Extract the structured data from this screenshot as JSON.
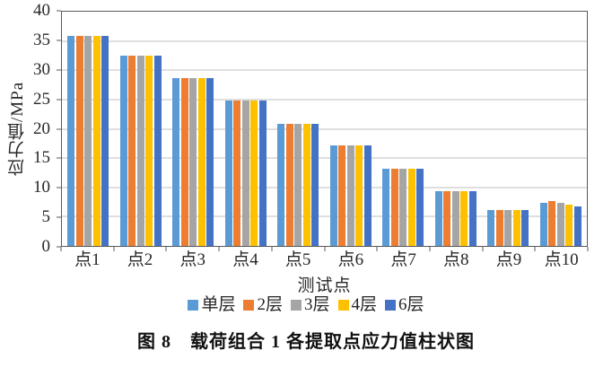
{
  "chart_data": {
    "type": "bar",
    "title": "",
    "xlabel": "测试点",
    "ylabel": "应力值/MPa",
    "ylim": [
      0,
      40
    ],
    "yticks": [
      0,
      5,
      10,
      15,
      20,
      25,
      30,
      35,
      40
    ],
    "grid": true,
    "legend_position": "bottom",
    "categories": [
      "点1",
      "点2",
      "点3",
      "点4",
      "点5",
      "点6",
      "点7",
      "点8",
      "点9",
      "点10"
    ],
    "series": [
      {
        "name": "单层",
        "color": "#5B9BD5",
        "values": [
          35.8,
          32.5,
          28.7,
          24.9,
          20.9,
          17.2,
          13.2,
          9.4,
          6.2,
          7.4
        ]
      },
      {
        "name": "2层",
        "color": "#ED7D31",
        "values": [
          35.8,
          32.5,
          28.7,
          24.9,
          20.9,
          17.2,
          13.2,
          9.4,
          6.1,
          7.6
        ]
      },
      {
        "name": "3层",
        "color": "#A5A5A5",
        "values": [
          35.8,
          32.5,
          28.7,
          24.9,
          20.9,
          17.2,
          13.2,
          9.4,
          6.1,
          7.3
        ]
      },
      {
        "name": "4层",
        "color": "#FFC000",
        "values": [
          35.8,
          32.5,
          28.7,
          24.9,
          20.9,
          17.2,
          13.2,
          9.4,
          6.1,
          7.0
        ]
      },
      {
        "name": "6层",
        "color": "#4472C4",
        "values": [
          35.8,
          32.5,
          28.7,
          24.9,
          20.9,
          17.2,
          13.2,
          9.4,
          6.2,
          6.8
        ]
      }
    ],
    "frame_color": "#595959",
    "gridline_color": "#bfbfbf"
  },
  "caption": "图 8　载荷组合 1 各提取点应力值柱状图"
}
